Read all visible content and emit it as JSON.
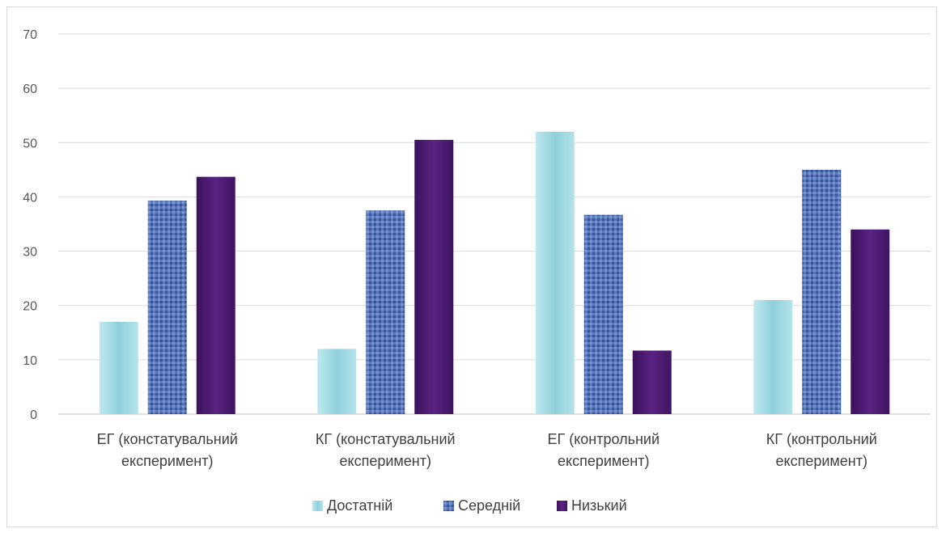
{
  "chart_data": {
    "type": "bar",
    "categories": [
      [
        "ЕГ (констатувальний",
        "експеримент)"
      ],
      [
        "КГ (констатувальний",
        "експеримент)"
      ],
      [
        "ЕГ (контрольний",
        "експеримент)"
      ],
      [
        "КГ (контрольний",
        "експеримент)"
      ]
    ],
    "series": [
      {
        "name": "Достатній",
        "values": [
          17,
          12,
          52,
          21
        ],
        "color": "#a9dde6"
      },
      {
        "name": "Середній",
        "values": [
          39.3,
          37.5,
          36.7,
          45
        ],
        "color": "#4f6fb3"
      },
      {
        "name": "Низький",
        "values": [
          43.7,
          50.5,
          11.7,
          34
        ],
        "color": "#4a1a6e"
      }
    ],
    "yticks": [
      0,
      10,
      20,
      30,
      40,
      50,
      60,
      70
    ],
    "ylim": [
      0,
      70
    ],
    "grid": true,
    "legend_position": "bottom"
  }
}
